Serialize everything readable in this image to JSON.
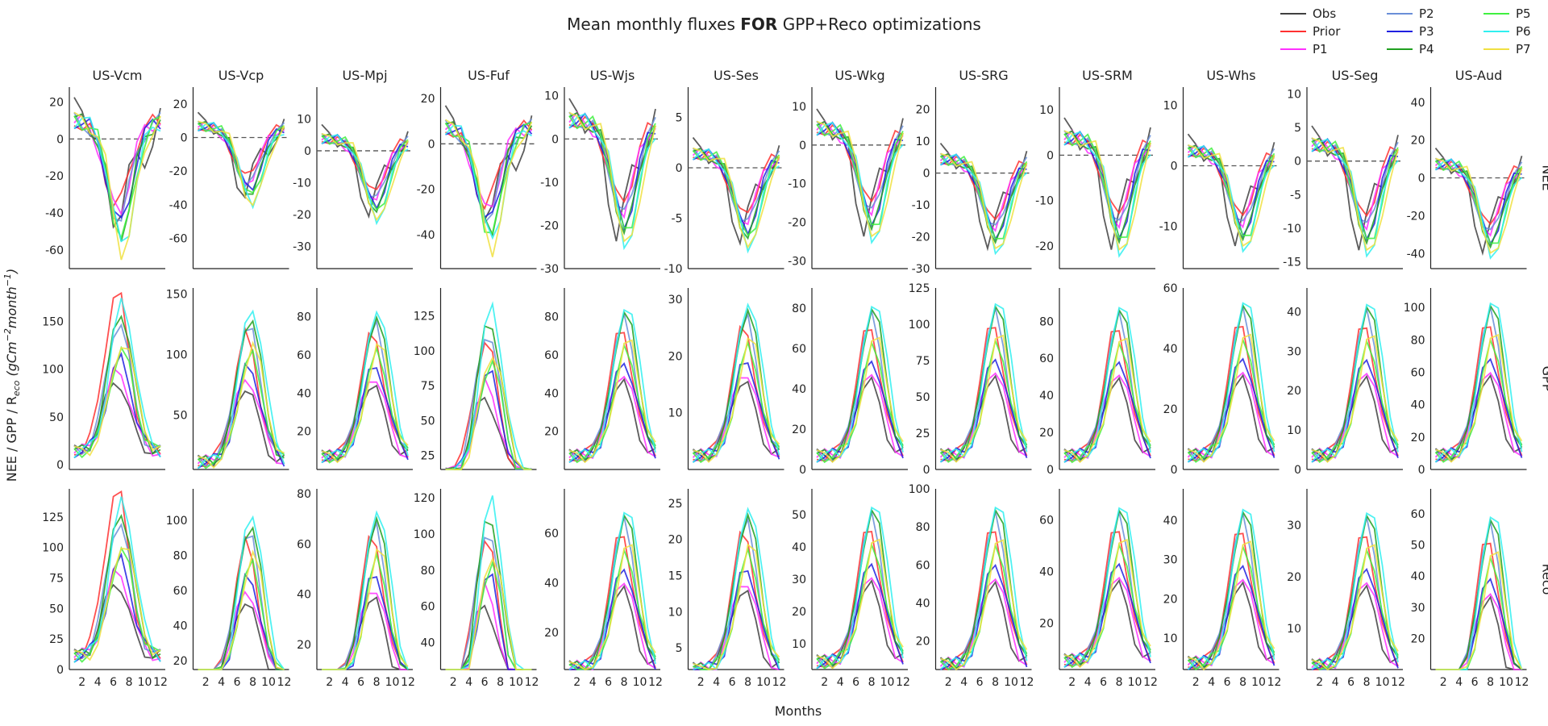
{
  "figure": {
    "title_prefix": "Mean monthly fluxes ",
    "title_bold": "FOR",
    "title_suffix": " GPP+Reco optimizations",
    "ylabel": "NEE / GPP / R",
    "ylabel_sub": "eco",
    "ylabel_unit": " (gCm",
    "ylabel_sup1": "−2",
    "ylabel_mid": "month",
    "ylabel_sup2": "−1",
    "ylabel_end": ")",
    "xlabel": "Months"
  },
  "legend": {
    "placement": "top-right",
    "entries": [
      {
        "label": "Obs",
        "color": "#404040"
      },
      {
        "label": "Prior",
        "color": "#ff3030"
      },
      {
        "label": "P1",
        "color": "#ff30ff"
      },
      {
        "label": "P2",
        "color": "#6a8fd8"
      },
      {
        "label": "P3",
        "color": "#2020e0"
      },
      {
        "label": "P4",
        "color": "#20a020"
      },
      {
        "label": "P5",
        "color": "#40f040"
      },
      {
        "label": "P6",
        "color": "#30f0f0"
      },
      {
        "label": "P7",
        "color": "#f0e040"
      }
    ]
  },
  "chart_data": {
    "type": "line",
    "x": [
      1,
      2,
      3,
      4,
      5,
      6,
      7,
      8,
      9,
      10,
      11,
      12
    ],
    "x_ticks": [
      2,
      4,
      6,
      8,
      10,
      12
    ],
    "rows": [
      "NEE",
      "GPP",
      "Reco"
    ],
    "sites": [
      {
        "name": "US-Vcm",
        "ranges": {
          "NEE": [
            -70,
            28
          ],
          "GPP": [
            -5,
            185
          ],
          "Reco": [
            0,
            148
          ]
        },
        "ticks": {
          "NEE": [
            -60,
            -40,
            -20,
            0,
            20
          ],
          "GPP": [
            0,
            50,
            100,
            150
          ],
          "Reco": [
            0,
            25,
            50,
            75,
            100,
            125
          ]
        },
        "amp": {
          "NEE": 60,
          "GPP": 170,
          "Reco": 138
        },
        "peak": 6.8
      },
      {
        "name": "US-Vcp",
        "ranges": {
          "NEE": [
            -78,
            30
          ],
          "GPP": [
            5,
            155
          ],
          "Reco": [
            15,
            118
          ]
        },
        "ticks": {
          "NEE": [
            -60,
            -40,
            -20,
            0,
            20
          ],
          "GPP": [
            50,
            100,
            150
          ],
          "Reco": [
            20,
            40,
            60,
            80,
            100
          ]
        },
        "amp": {
          "NEE": 40,
          "GPP": 140,
          "Reco": 105
        },
        "peak": 7.5
      },
      {
        "name": "US-Mpj",
        "ranges": {
          "NEE": [
            -37,
            20
          ],
          "GPP": [
            0,
            95
          ],
          "Reco": [
            10,
            82
          ]
        },
        "ticks": {
          "NEE": [
            -30,
            -20,
            -10,
            0,
            10
          ],
          "GPP": [
            20,
            40,
            60,
            80
          ],
          "Reco": [
            20,
            40,
            60,
            80
          ]
        },
        "amp": {
          "NEE": 22,
          "GPP": 85,
          "Reco": 75
        },
        "peak": 7.8
      },
      {
        "name": "US-Fuf",
        "ranges": {
          "NEE": [
            -55,
            25
          ],
          "GPP": [
            15,
            145
          ],
          "Reco": [
            25,
            125
          ]
        },
        "ticks": {
          "NEE": [
            -40,
            -20,
            0,
            20
          ],
          "GPP": [
            25,
            50,
            75,
            100,
            125
          ],
          "Reco": [
            40,
            60,
            80,
            100,
            120
          ]
        },
        "amp": {
          "NEE": 45,
          "GPP": 130,
          "Reco": 118
        },
        "peak": 6.5
      },
      {
        "name": "US-Wjs",
        "ranges": {
          "NEE": [
            -30,
            12
          ],
          "GPP": [
            0,
            95
          ],
          "Reco": [
            5,
            78
          ]
        },
        "ticks": {
          "NEE": [
            -30,
            -20,
            -10,
            0,
            10
          ],
          "GPP": [
            20,
            40,
            60,
            80
          ],
          "Reco": [
            20,
            40,
            60
          ]
        },
        "amp": {
          "NEE": 25,
          "GPP": 88,
          "Reco": 72
        },
        "peak": 8
      },
      {
        "name": "US-Ses",
        "ranges": {
          "NEE": [
            -10,
            8
          ],
          "GPP": [
            0,
            32
          ],
          "Reco": [
            2,
            27
          ]
        },
        "ticks": {
          "NEE": [
            -10,
            -5,
            0,
            5
          ],
          "GPP": [
            10,
            20,
            30
          ],
          "Reco": [
            5,
            10,
            15,
            20,
            25
          ]
        },
        "amp": {
          "NEE": 8,
          "GPP": 30,
          "Reco": 25
        },
        "peak": 7.8
      },
      {
        "name": "US-Wkg",
        "ranges": {
          "NEE": [
            -32,
            15
          ],
          "GPP": [
            0,
            90
          ],
          "Reco": [
            2,
            58
          ]
        },
        "ticks": {
          "NEE": [
            -30,
            -20,
            -10,
            0,
            10
          ],
          "GPP": [
            0,
            20,
            40,
            60,
            80
          ],
          "Reco": [
            10,
            20,
            30,
            40,
            50
          ]
        },
        "amp": {
          "NEE": 25,
          "GPP": 85,
          "Reco": 55
        },
        "peak": 8
      },
      {
        "name": "US-SRG",
        "ranges": {
          "NEE": [
            -30,
            27
          ],
          "GPP": [
            0,
            125
          ],
          "Reco": [
            5,
            100
          ]
        },
        "ticks": {
          "NEE": [
            -30,
            -20,
            -10,
            0,
            10,
            20
          ],
          "GPP": [
            0,
            25,
            50,
            75,
            100,
            125
          ],
          "Reco": [
            20,
            40,
            60,
            80,
            100
          ]
        },
        "amp": {
          "NEE": 25,
          "GPP": 120,
          "Reco": 95
        },
        "peak": 8
      },
      {
        "name": "US-SRM",
        "ranges": {
          "NEE": [
            -25,
            15
          ],
          "GPP": [
            0,
            98
          ],
          "Reco": [
            2,
            72
          ]
        },
        "ticks": {
          "NEE": [
            -20,
            -10,
            0,
            10
          ],
          "GPP": [
            0,
            20,
            40,
            60,
            80
          ],
          "Reco": [
            20,
            40,
            60
          ]
        },
        "amp": {
          "NEE": 22,
          "GPP": 92,
          "Reco": 68
        },
        "peak": 8
      },
      {
        "name": "US-Whs",
        "ranges": {
          "NEE": [
            -17,
            13
          ],
          "GPP": [
            0,
            60
          ],
          "Reco": [
            2,
            48
          ]
        },
        "ticks": {
          "NEE": [
            -10,
            0,
            10
          ],
          "GPP": [
            0,
            20,
            40,
            60
          ],
          "Reco": [
            10,
            20,
            30,
            40
          ]
        },
        "amp": {
          "NEE": 14,
          "GPP": 58,
          "Reco": 45
        },
        "peak": 8
      },
      {
        "name": "US-Seg",
        "ranges": {
          "NEE": [
            -16,
            11
          ],
          "GPP": [
            0,
            46
          ],
          "Reco": [
            2,
            37
          ]
        },
        "ticks": {
          "NEE": [
            -15,
            -10,
            -5,
            0,
            5,
            10
          ],
          "GPP": [
            0,
            10,
            20,
            30,
            40
          ],
          "Reco": [
            10,
            20,
            30
          ]
        },
        "amp": {
          "NEE": 14,
          "GPP": 44,
          "Reco": 34
        },
        "peak": 8
      },
      {
        "name": "US-Aud",
        "ranges": {
          "NEE": [
            -48,
            48
          ],
          "GPP": [
            0,
            112
          ],
          "Reco": [
            10,
            68
          ]
        },
        "ticks": {
          "NEE": [
            -40,
            -20,
            0,
            20,
            40
          ],
          "GPP": [
            0,
            20,
            40,
            60,
            80,
            100
          ],
          "Reco": [
            20,
            30,
            40,
            50,
            60
          ]
        },
        "amp": {
          "NEE": 42,
          "GPP": 108,
          "Reco": 62
        },
        "peak": 8
      }
    ]
  }
}
